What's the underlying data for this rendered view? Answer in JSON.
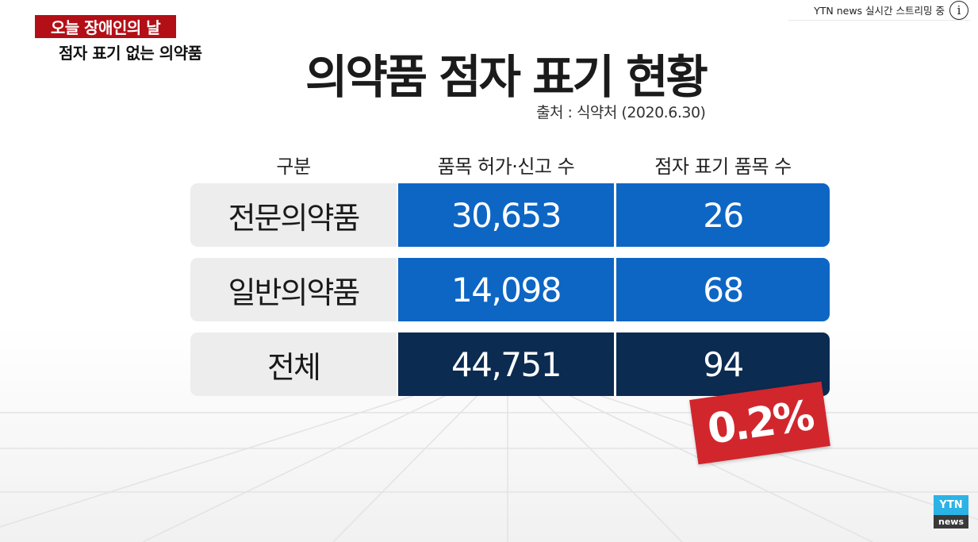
{
  "overlay": {
    "live_status": "YTN news 실시간 스트리밍 중",
    "info_icon": "i"
  },
  "caption": {
    "headline": "오늘 장애인의 날",
    "subline": "점자 표기 없는 의약품"
  },
  "infographic": {
    "title": "의약품 점자 표기 현황",
    "source": "출처 : 식약처 (2020.6.30)",
    "columns": [
      "구분",
      "품목 허가·신고 수",
      "점자 표기 품목 수"
    ],
    "rows": [
      {
        "label": "전문의약품",
        "approved": "30,653",
        "braille": "26",
        "style": "blue"
      },
      {
        "label": "일반의약품",
        "approved": "14,098",
        "braille": "68",
        "style": "blue"
      },
      {
        "label": "전체",
        "approved": "44,751",
        "braille": "94",
        "style": "navy"
      }
    ],
    "percentage_badge": "0.2%"
  },
  "logo": {
    "top": "YTN",
    "bottom": "news"
  },
  "colors": {
    "caption_red": "#b30f17",
    "cell_blue": "#0d66c4",
    "cell_navy": "#0b2b51",
    "badge_red": "#d2262d",
    "logo_blue": "#2bb3e5"
  }
}
